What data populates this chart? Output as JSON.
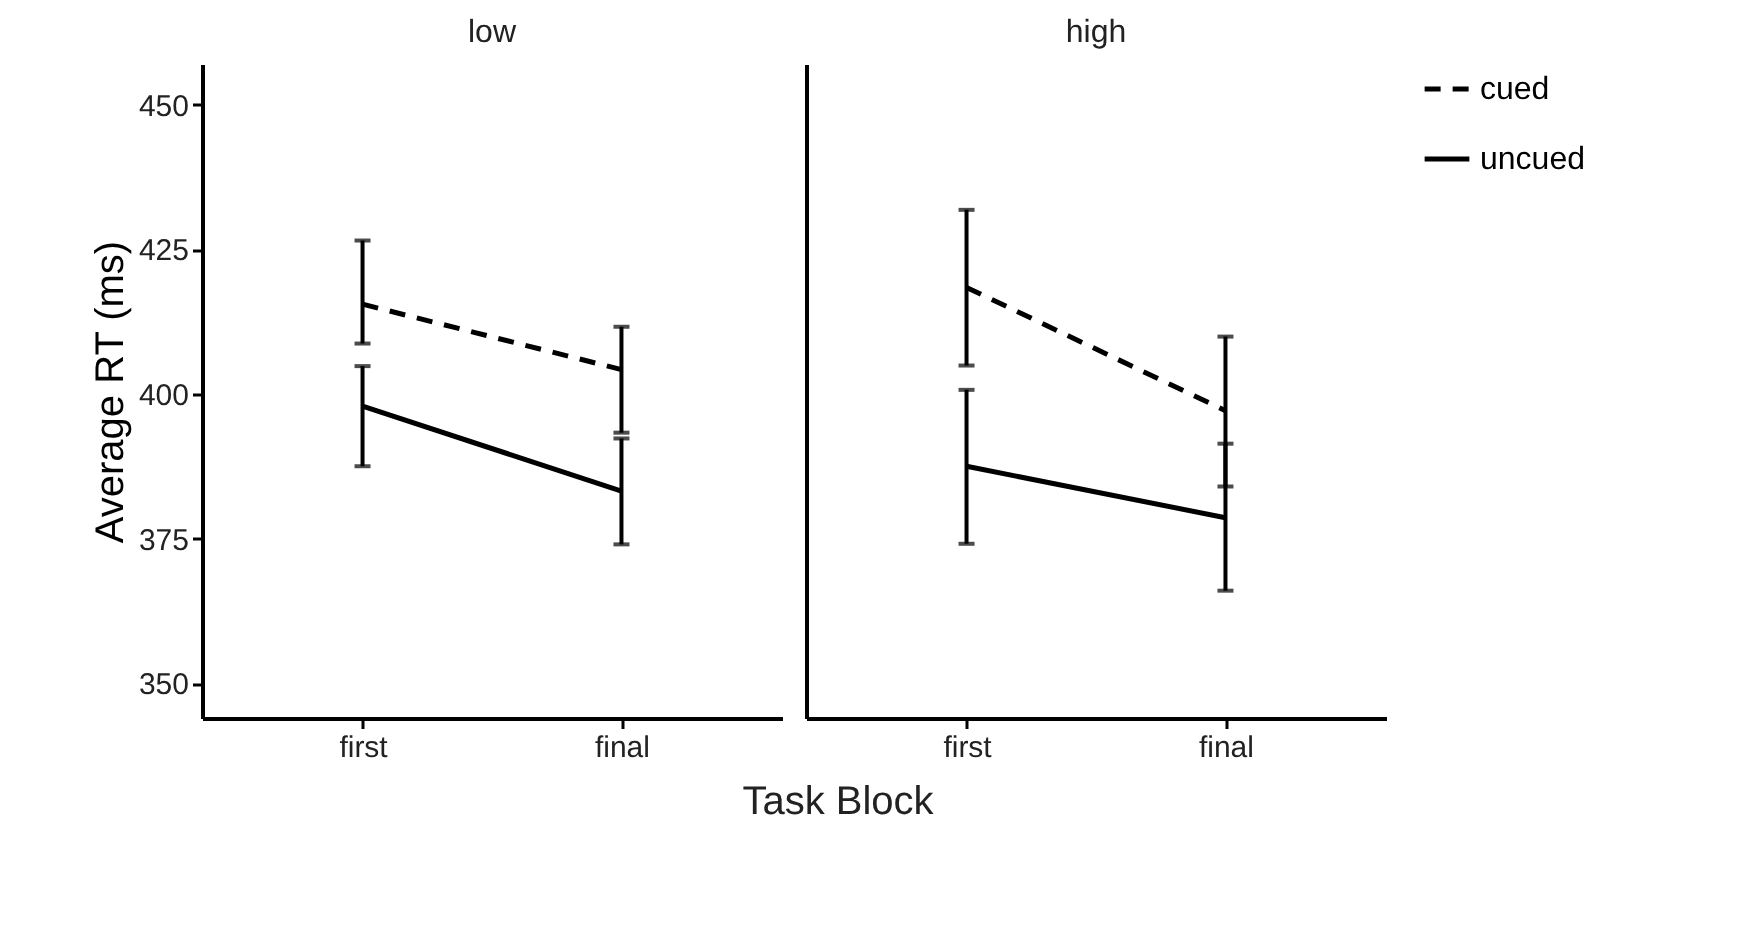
{
  "chart_data": [
    {
      "type": "line",
      "title": "low",
      "ylabel": "Average RT (ms)",
      "xlabel": "Task Block",
      "categories": [
        "first",
        "final"
      ],
      "ylim": [
        344,
        457
      ],
      "yticks": [
        350,
        375,
        400,
        425,
        450
      ],
      "legend": "right",
      "series": [
        {
          "name": "cued",
          "color": "#000000",
          "line_style": "dashed",
          "values": [
            415.5,
            404.2
          ],
          "errors": [
            [
              408.7,
              426.5
            ],
            [
              393.3,
              411.6
            ]
          ]
        },
        {
          "name": "uncued",
          "color": "#000000",
          "line_style": "solid",
          "values": [
            397.9,
            383.2
          ],
          "errors": [
            [
              387.5,
              404.8
            ],
            [
              374.0,
              392.3
            ]
          ]
        }
      ]
    },
    {
      "type": "line",
      "title": "high",
      "categories": [
        "first",
        "final"
      ],
      "ylim": [
        344,
        457
      ],
      "yticks": [
        350,
        375,
        400,
        425,
        450
      ],
      "tick_labels": "x",
      "legend": "right",
      "series": [
        {
          "name": "cued",
          "color": "#000000",
          "line_style": "dashed",
          "values": [
            418.4,
            397.1
          ],
          "errors": [
            [
              404.9,
              431.8
            ],
            [
              384.0,
              409.9
            ]
          ]
        },
        {
          "name": "uncued",
          "color": "#000000",
          "line_style": "solid",
          "values": [
            387.5,
            378.6
          ],
          "errors": [
            [
              374.1,
              400.7
            ],
            [
              366.0,
              391.4
            ]
          ]
        }
      ]
    }
  ]
}
